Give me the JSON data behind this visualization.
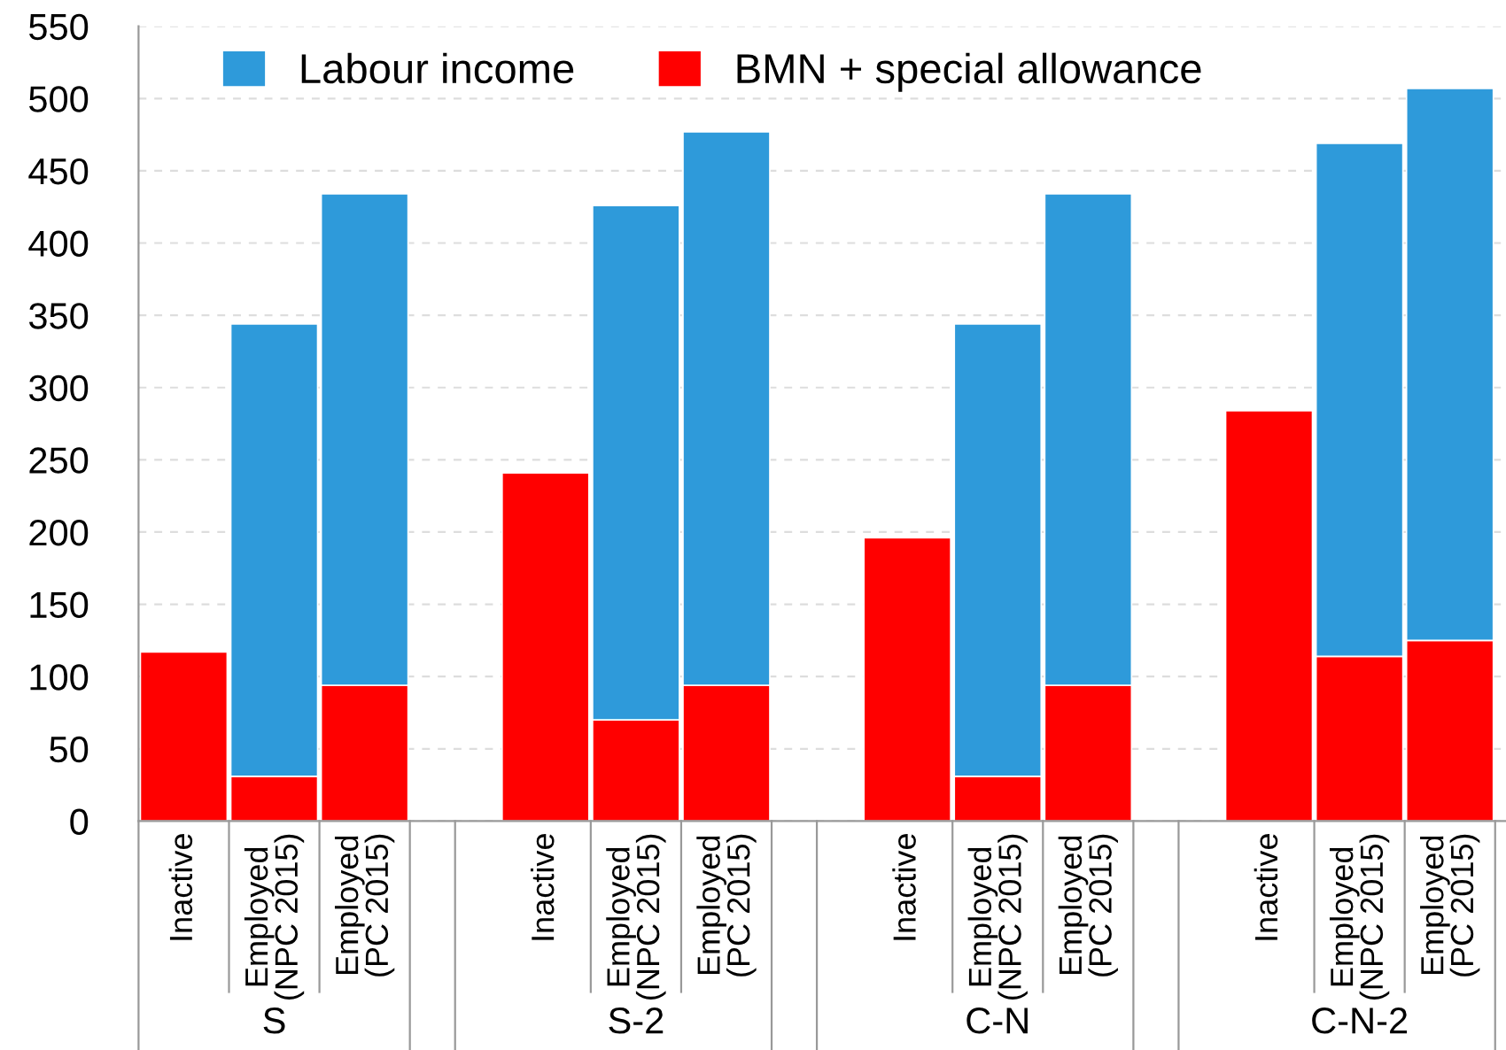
{
  "chart_data": {
    "type": "bar",
    "stacked": true,
    "categories": [
      "Inactive",
      "Employed\n(NPC 2015)",
      "Employed\n(PC 2015)",
      "Inactive",
      "Employed\n(NPC 2015)",
      "Employed\n(PC 2015)",
      "Inactive",
      "Employed\n(NPC 2015)",
      "Employed\n(PC 2015)",
      "Inactive",
      "Employed\n(NPC 2015)",
      "Employed\n(PC 2015)"
    ],
    "series": [
      {
        "name": "BMN + special allowance",
        "color": "#ff0000",
        "values": [
          117,
          31,
          94,
          241,
          70,
          94,
          196,
          31,
          94,
          284,
          114,
          125
        ]
      },
      {
        "name": "Labour income",
        "color": "#2e9ada",
        "values": [
          null,
          313,
          340,
          null,
          356,
          383,
          null,
          313,
          340,
          null,
          355,
          382
        ]
      }
    ],
    "annotations": [
      "S",
      "S-2",
      "C-N",
      "C-N-2"
    ],
    "ylim": [
      0,
      550
    ],
    "yticks": [
      0,
      50,
      100,
      150,
      200,
      250,
      300,
      350,
      400,
      450,
      500,
      550
    ],
    "grid": "y",
    "legend": "top"
  }
}
